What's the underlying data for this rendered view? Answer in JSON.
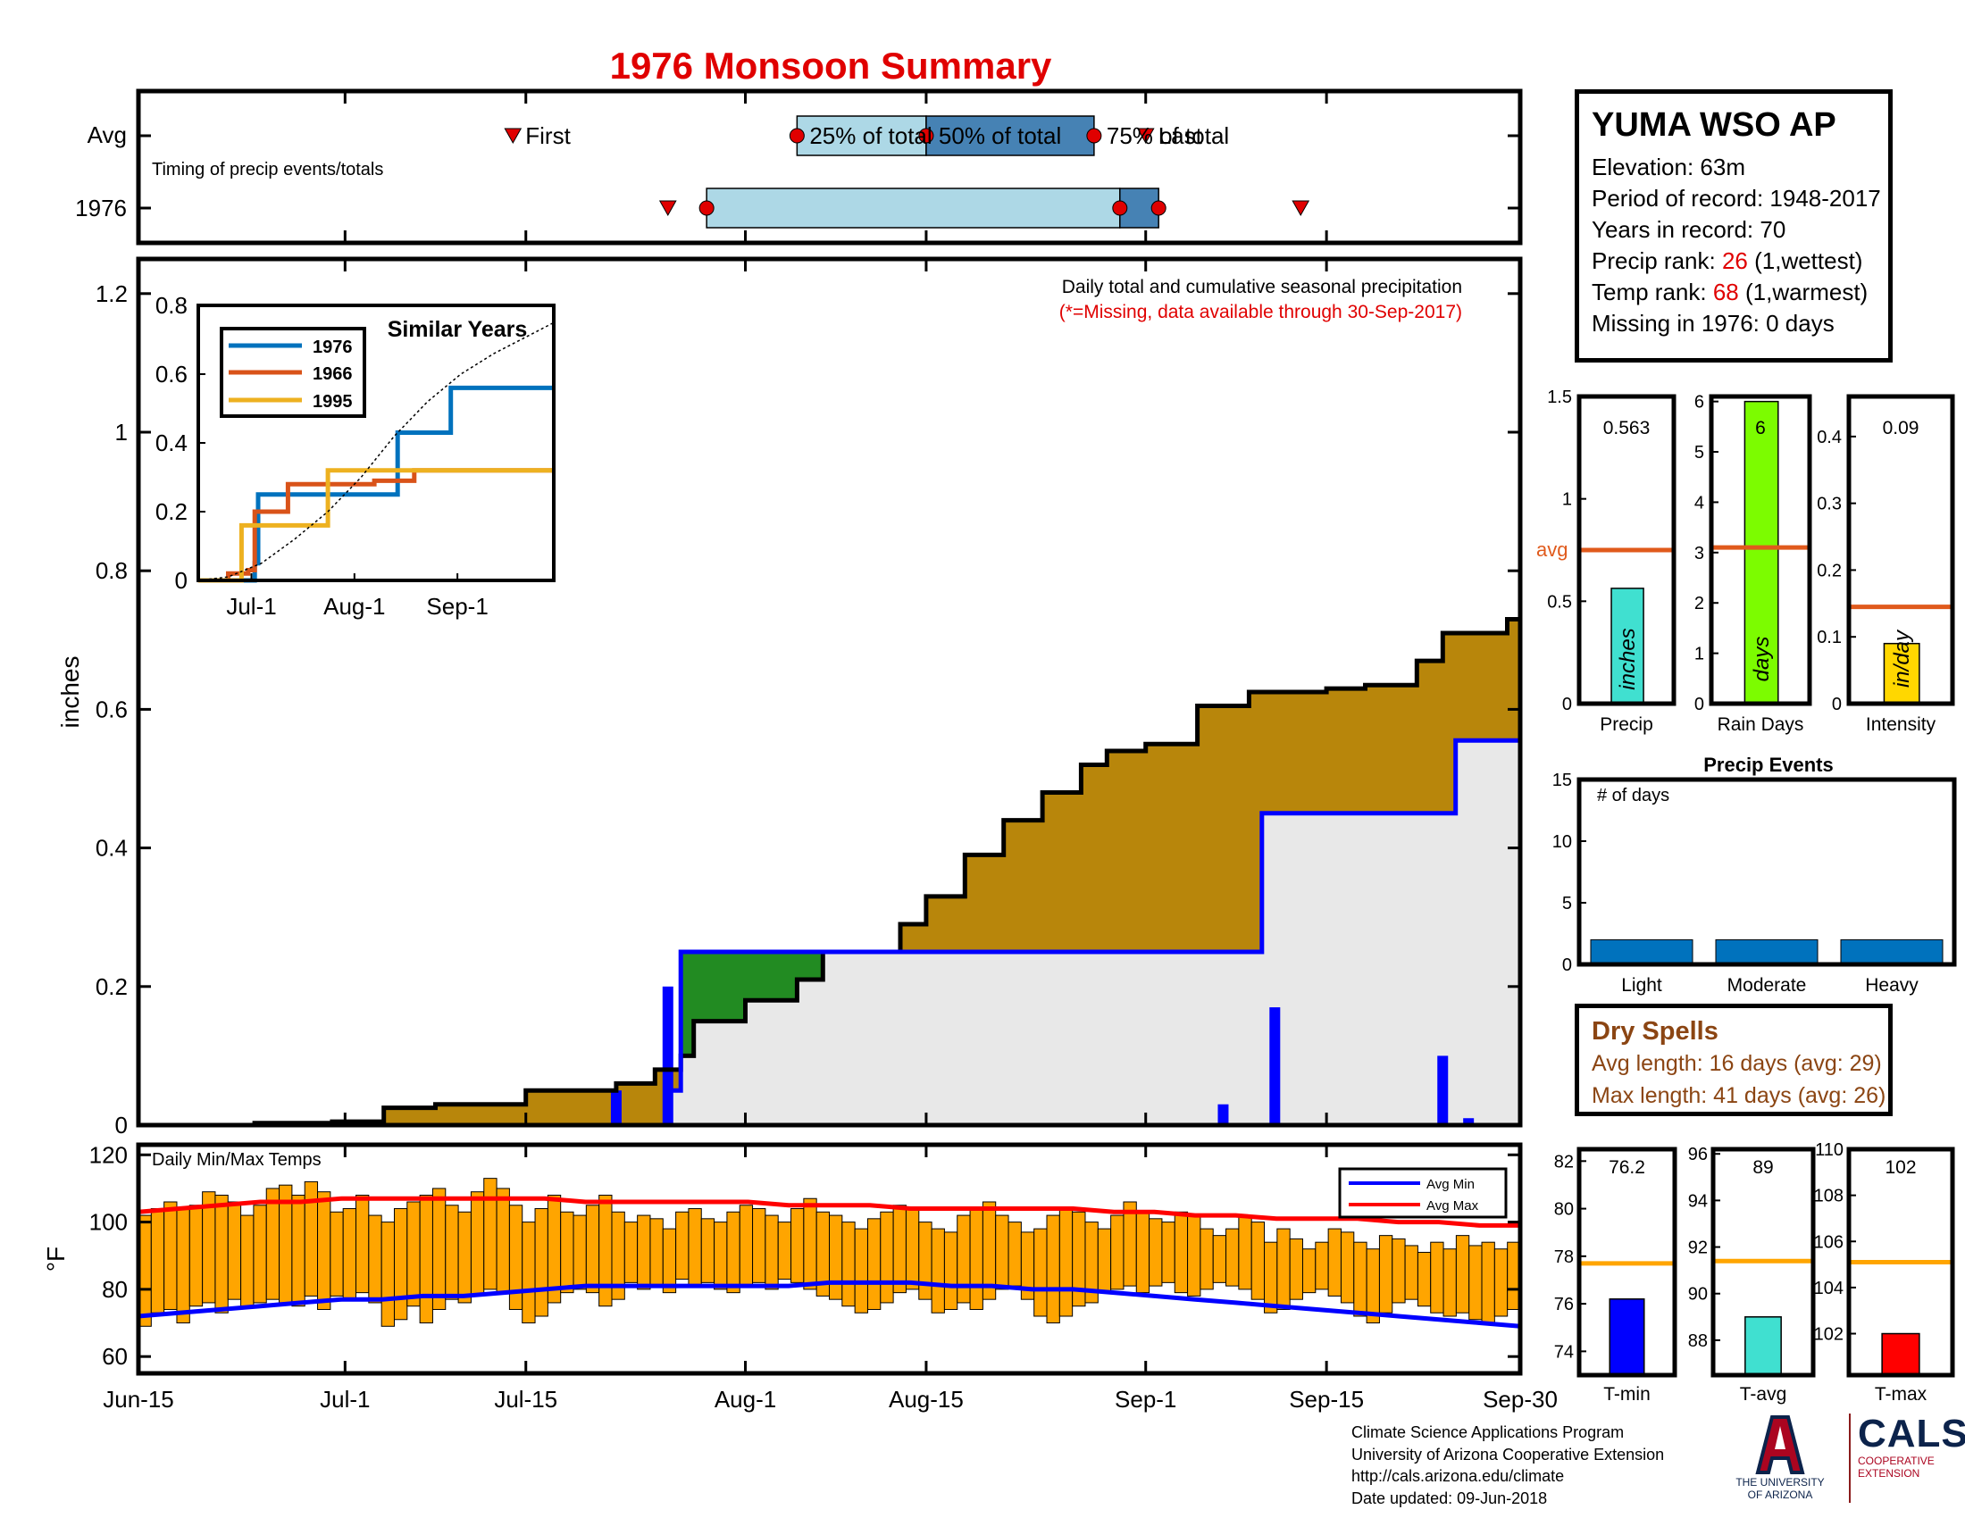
{
  "title": "1976 Monsoon Summary",
  "timing": {
    "ylabels": [
      "Avg",
      "1976"
    ],
    "caption": "Timing of precip events/totals",
    "labels": {
      "first": "First",
      "p25": "25% of total",
      "p50": "50% of total",
      "p75": "75% of total",
      "last": "Last"
    },
    "avg": {
      "first": 30,
      "p25": 52,
      "p50": 62,
      "p75": 75,
      "last": 79
    },
    "year": {
      "first_marker": 42,
      "p25": 45,
      "p50": 77,
      "p75": 80,
      "last_marker": 91
    }
  },
  "station": {
    "name": "YUMA WSO AP",
    "elevation": "Elevation: 63m",
    "period": "Period of record: 1948-2017",
    "years": "Years in record: 70",
    "precip_rank_label": "Precip rank: ",
    "precip_rank": "26",
    "precip_rank_note": " (1,wettest)",
    "temp_rank_label": "Temp rank: ",
    "temp_rank": "68",
    "temp_rank_note": " (1,warmest)",
    "missing": "Missing in 1976: 0 days"
  },
  "main": {
    "ylabel": "inches",
    "note1": "Daily total and cumulative seasonal precipitation",
    "note2": "(*=Missing, data available through 30-Sep-2017)",
    "yticks": [
      "0",
      "0.2",
      "0.4",
      "0.6",
      "0.8",
      "1",
      "1.2"
    ],
    "xticks": [
      "Jun-15",
      "Jul-1",
      "Jul-15",
      "Aug-1",
      "Aug-15",
      "Sep-1",
      "Sep-15",
      "Sep-30"
    ]
  },
  "inset": {
    "title": "Similar Years",
    "legend": [
      "1976",
      "1966",
      "1995"
    ],
    "yticks": [
      "0",
      "0.2",
      "0.4",
      "0.6",
      "0.8"
    ],
    "xticks": [
      "Jul-1",
      "Aug-1",
      "Sep-1"
    ]
  },
  "temps": {
    "title": "Daily Min/Max Temps",
    "ylabel": "°F",
    "yticks": [
      "60",
      "80",
      "100",
      "120"
    ],
    "legend": [
      "Avg Min",
      "Avg Max"
    ]
  },
  "mini_charts": {
    "precip": {
      "label": "Precip",
      "value": "0.563",
      "unit": "inches",
      "avg_label": "avg",
      "yticks": [
        "0",
        "0.5",
        "1",
        "1.5"
      ]
    },
    "raindays": {
      "label": "Rain Days",
      "value": "6",
      "unit": "days",
      "yticks": [
        "0",
        "1",
        "2",
        "3",
        "4",
        "5",
        "6"
      ]
    },
    "intensity": {
      "label": "Intensity",
      "value": "0.09",
      "unit": "in/day",
      "yticks": [
        "0",
        "0.1",
        "0.2",
        "0.3",
        "0.4"
      ]
    }
  },
  "precip_events": {
    "title": "Precip Events",
    "ylabel": "# of days",
    "categories": [
      "Light",
      "Moderate",
      "Heavy"
    ],
    "yticks": [
      "0",
      "5",
      "10",
      "15"
    ]
  },
  "dry_spells": {
    "title": "Dry Spells",
    "avg_length": "Avg length: 16 days (avg: 29)",
    "max_length": "Max length: 41 days (avg: 26)"
  },
  "temp_bars": {
    "tmin": {
      "label": "T-min",
      "value": "76.2",
      "yticks": [
        "74",
        "76",
        "78",
        "80",
        "82"
      ]
    },
    "tavg": {
      "label": "T-avg",
      "value": "89",
      "yticks": [
        "88",
        "90",
        "92",
        "94",
        "96"
      ]
    },
    "tmax": {
      "label": "T-max",
      "value": "102",
      "yticks": [
        "102",
        "104",
        "106",
        "108",
        "110"
      ]
    }
  },
  "footer": {
    "line1": "Climate Science Applications Program",
    "line2": "University of Arizona Cooperative Extension",
    "line3": "http://cals.arizona.edu/climate",
    "line4": " Date updated: 09-Jun-2018"
  },
  "logos": {
    "ua_letter": "A",
    "ua_text1": "THE UNIVERSITY",
    "ua_text2": "OF ARIZONA",
    "cals": "CALS",
    "cals_sub1": "COOPERATIVE",
    "cals_sub2": "EXTENSION"
  },
  "colors": {
    "cumulative_avg": "#b8860b",
    "cumulative_above": "#228b22",
    "season_fill": "#e8e8e8",
    "daily": "#0000ff",
    "temp_bar": "#ffa500",
    "avg_min": "#0000ff",
    "avg_max": "#ff0000",
    "avg_line": "#e05a1c"
  },
  "chart_data": [
    {
      "type": "area",
      "title": "Daily total and cumulative seasonal precipitation",
      "ylabel": "inches",
      "ylim": [
        0,
        1.25
      ],
      "x_unit": "day of season (1 = Jun-15, 108 = Sep-30)",
      "series": [
        {
          "name": "",
          "x": [
            1,
            10,
            16,
            20,
            24,
            31,
            38,
            41,
            43,
            44,
            48,
            52,
            54,
            60,
            62,
            65,
            68,
            71,
            74,
            76,
            79,
            83,
            87,
            93,
            96,
            100,
            102,
            107,
            108
          ],
          "values": [
            0,
            0.003,
            0.005,
            0.025,
            0.03,
            0.05,
            0.06,
            0.08,
            0.1,
            0.15,
            0.18,
            0.21,
            0.25,
            0.29,
            0.33,
            0.39,
            0.44,
            0.48,
            0.52,
            0.54,
            0.55,
            0.605,
            0.625,
            0.63,
            0.635,
            0.67,
            0.71,
            0.73,
            0.75
          ]
        },
        {
          "name": "",
          "x": [
            1,
            38,
            42,
            43,
            79,
            88,
            101,
            103,
            108
          ],
          "values": [
            0,
            0,
            0.05,
            0.25,
            0.25,
            0.45,
            0.45,
            0.555,
            0.56
          ]
        }
      ],
      "daily": {
        "x": [
          38,
          42,
          85,
          89,
          102,
          104
        ],
        "values": [
          0.05,
          0.2,
          0.03,
          0.17,
          0.1,
          0.01
        ]
      }
    },
    {
      "type": "line",
      "title": "Similar Years",
      "x_unit": "day of season",
      "ylim": [
        0,
        0.8
      ],
      "series": [
        {
          "name": "1976",
          "x": [
            1,
            15,
            18,
            19,
            45,
            50,
            51,
            61,
            68,
            77,
            78,
            108
          ],
          "values": [
            0,
            0,
            0.05,
            0.25,
            0.25,
            0.25,
            0.25,
            0.43,
            0.43,
            0.56,
            0.56,
            0.56
          ]
        },
        {
          "name": "1966",
          "x": [
            1,
            10,
            16,
            18,
            26,
            28,
            52,
            54,
            66,
            108
          ],
          "values": [
            0,
            0.02,
            0.03,
            0.2,
            0.2,
            0.28,
            0.28,
            0.29,
            0.32,
            0.32
          ]
        },
        {
          "name": "1995",
          "x": [
            1,
            13,
            14,
            39,
            40,
            108
          ],
          "values": [
            0,
            0,
            0.16,
            0.16,
            0.32,
            0.32
          ]
        },
        {
          "name": "",
          "x": [
            1,
            10,
            20,
            30,
            40,
            50,
            60,
            70,
            80,
            90,
            100,
            108
          ],
          "values": [
            0,
            0.01,
            0.05,
            0.12,
            0.2,
            0.3,
            0.42,
            0.52,
            0.6,
            0.66,
            0.71,
            0.75
          ]
        }
      ]
    },
    {
      "type": "bar",
      "title": "Daily Min/Max Temps",
      "ylabel": "°F",
      "ylim": [
        55,
        123
      ],
      "tmin": [
        69,
        73,
        74,
        70,
        75,
        76,
        73,
        77,
        75,
        76,
        77,
        76,
        75,
        78,
        74,
        78,
        77,
        79,
        76,
        69,
        71,
        75,
        70,
        74,
        77,
        76,
        78,
        80,
        79,
        74,
        70,
        72,
        76,
        79,
        80,
        79,
        75,
        77,
        82,
        80,
        81,
        79,
        83,
        81,
        82,
        80,
        79,
        81,
        82,
        80,
        83,
        82,
        80,
        78,
        77,
        75,
        73,
        74,
        76,
        79,
        80,
        77,
        73,
        74,
        76,
        74,
        77,
        80,
        81,
        77,
        72,
        70,
        72,
        75,
        76,
        79,
        80,
        81,
        79,
        81,
        82,
        79,
        78,
        80,
        82,
        81,
        80,
        77,
        73,
        74,
        77,
        79,
        80,
        78,
        76,
        72,
        70,
        73,
        76,
        77,
        75,
        73,
        72,
        73,
        71,
        70,
        72,
        74
      ],
      "tmax": [
        102,
        104,
        106,
        104,
        105,
        109,
        108,
        106,
        102,
        105,
        110,
        111,
        108,
        112,
        109,
        103,
        104,
        108,
        102,
        100,
        104,
        106,
        108,
        110,
        105,
        103,
        109,
        113,
        110,
        105,
        100,
        104,
        108,
        103,
        102,
        105,
        108,
        103,
        100,
        102,
        101,
        98,
        103,
        104,
        101,
        100,
        103,
        105,
        104,
        102,
        100,
        104,
        107,
        103,
        102,
        100,
        98,
        101,
        103,
        105,
        104,
        100,
        98,
        97,
        102,
        104,
        106,
        102,
        100,
        97,
        98,
        102,
        104,
        103,
        100,
        98,
        102,
        106,
        103,
        101,
        100,
        103,
        102,
        98,
        96,
        98,
        102,
        100,
        94,
        98,
        95,
        92,
        94,
        98,
        97,
        94,
        92,
        96,
        95,
        93,
        91,
        94,
        92,
        96,
        93,
        94,
        92,
        94
      ],
      "avg_min": [
        72,
        73,
        74,
        75,
        76,
        77,
        77,
        78,
        78,
        79,
        80,
        81,
        81,
        81,
        81,
        81,
        81,
        82,
        82,
        82,
        81,
        81,
        80,
        80,
        79,
        78,
        77,
        76,
        75,
        74,
        73,
        72,
        71,
        70,
        69
      ],
      "avg_max": [
        103,
        104,
        105,
        106,
        106,
        107,
        107,
        107,
        107,
        107,
        107,
        106,
        106,
        106,
        106,
        106,
        105,
        105,
        105,
        104,
        104,
        104,
        104,
        104,
        103,
        103,
        102,
        102,
        101,
        101,
        101,
        100,
        100,
        99,
        99
      ]
    },
    {
      "type": "bar",
      "title": "Seasonal totals",
      "categories": [
        "Precip",
        "Rain Days",
        "Intensity"
      ],
      "values": [
        0.563,
        6,
        0.09
      ],
      "averages": [
        0.75,
        3.1,
        0.145
      ],
      "ylim": [
        [
          0,
          1.5
        ],
        [
          0,
          6.1
        ],
        [
          0,
          0.46
        ]
      ]
    },
    {
      "type": "bar",
      "title": "Precip Events",
      "categories": [
        "Light",
        "Moderate",
        "Heavy"
      ],
      "values": [
        2,
        2,
        2
      ],
      "ylim": [
        0,
        15
      ]
    },
    {
      "type": "bar",
      "title": "Seasonal temperatures",
      "categories": [
        "T-min",
        "T-avg",
        "T-max"
      ],
      "values": [
        76.2,
        89,
        102
      ],
      "averages": [
        77.7,
        91.4,
        105.1
      ],
      "ylim": [
        [
          73,
          82.5
        ],
        [
          86.5,
          96.2
        ],
        [
          100.2,
          110
        ]
      ]
    }
  ]
}
